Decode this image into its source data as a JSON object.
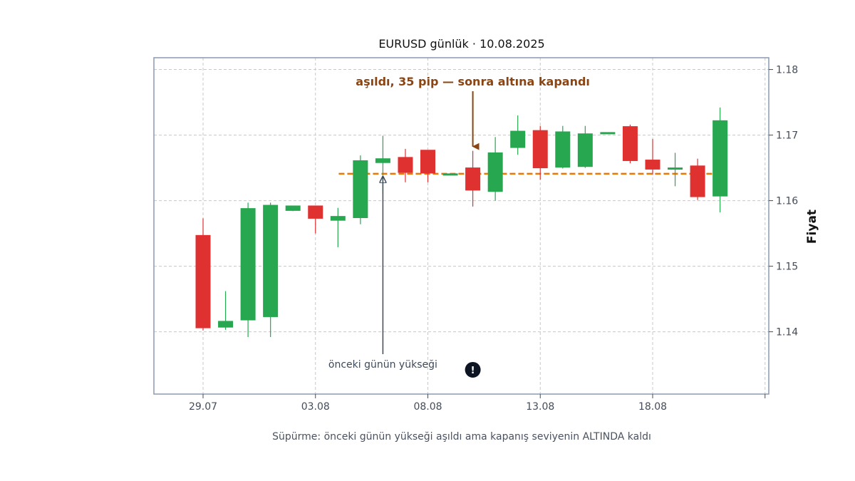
{
  "chart_data": {
    "type": "candlestick",
    "title": "EURUSD günlük · 10.08.2025",
    "ylabel": "Fiyat",
    "caption": "Süpürme: önceki günün yükseği aşıldı ama kapanış seviyenin ALTINDA kaldı",
    "ylim": [
      1.1305,
      1.1818
    ],
    "yticks": [
      "1.14",
      "1.15",
      "1.16",
      "1.17",
      "1.18"
    ],
    "ytick_values": [
      1.14,
      1.15,
      1.16,
      1.17,
      1.18
    ],
    "xticks": [
      "29.07",
      "03.08",
      "08.08",
      "13.08",
      "18.08"
    ],
    "grid": true,
    "colors": {
      "up": "#27a74f",
      "down": "#e03131",
      "level": "#e8760a",
      "annotation_top": "#8b4513",
      "annotation_bottom": "#3d4a5c",
      "marker": "#0d1524"
    },
    "candles": [
      {
        "date": "29.07",
        "open": 1.1547,
        "high": 1.1573,
        "low": 1.1402,
        "close": 1.1406
      },
      {
        "date": "30.07",
        "open": 1.1407,
        "high": 1.1462,
        "low": 1.1403,
        "close": 1.1416
      },
      {
        "date": "31.07",
        "open": 1.1418,
        "high": 1.1597,
        "low": 1.1392,
        "close": 1.1588
      },
      {
        "date": "01.08",
        "open": 1.1423,
        "high": 1.1597,
        "low": 1.1392,
        "close": 1.1593
      },
      {
        "date": "02.08",
        "open": 1.1585,
        "high": 1.1592,
        "low": 1.1584,
        "close": 1.1592
      },
      {
        "date": "03.08",
        "open": 1.1592,
        "high": 1.1592,
        "low": 1.155,
        "close": 1.1573
      },
      {
        "date": "04.08",
        "open": 1.157,
        "high": 1.1589,
        "low": 1.1529,
        "close": 1.1576
      },
      {
        "date": "05.08",
        "open": 1.1574,
        "high": 1.1669,
        "low": 1.1564,
        "close": 1.1661
      },
      {
        "date": "06.08",
        "open": 1.1658,
        "high": 1.1699,
        "low": 1.161,
        "close": 1.1664
      },
      {
        "date": "07.08",
        "open": 1.1666,
        "high": 1.1679,
        "low": 1.1628,
        "close": 1.1643
      },
      {
        "date": "08.08",
        "open": 1.1677,
        "high": 1.1677,
        "low": 1.1628,
        "close": 1.1642
      },
      {
        "date": "09.08",
        "open": 1.164,
        "high": 1.1641,
        "low": 1.164,
        "close": 1.1641
      },
      {
        "date": "10.08",
        "open": 1.165,
        "high": 1.1676,
        "low": 1.1591,
        "close": 1.1616
      },
      {
        "date": "11.08",
        "open": 1.1614,
        "high": 1.1697,
        "low": 1.16,
        "close": 1.1673
      },
      {
        "date": "12.08",
        "open": 1.1681,
        "high": 1.173,
        "low": 1.167,
        "close": 1.1706
      },
      {
        "date": "13.08",
        "open": 1.1707,
        "high": 1.1714,
        "low": 1.1632,
        "close": 1.165
      },
      {
        "date": "14.08",
        "open": 1.1651,
        "high": 1.1714,
        "low": 1.1649,
        "close": 1.1705
      },
      {
        "date": "15.08",
        "open": 1.1652,
        "high": 1.1714,
        "low": 1.165,
        "close": 1.1702
      },
      {
        "date": "16.08",
        "open": 1.1702,
        "high": 1.1704,
        "low": 1.1702,
        "close": 1.1704
      },
      {
        "date": "17.08",
        "open": 1.1713,
        "high": 1.1716,
        "low": 1.1657,
        "close": 1.1661
      },
      {
        "date": "18.08",
        "open": 1.1662,
        "high": 1.1694,
        "low": 1.164,
        "close": 1.1648
      },
      {
        "date": "19.08",
        "open": 1.1648,
        "high": 1.1673,
        "low": 1.1622,
        "close": 1.165
      },
      {
        "date": "20.08",
        "open": 1.1653,
        "high": 1.1664,
        "low": 1.1601,
        "close": 1.1606
      },
      {
        "date": "21.08",
        "open": 1.1607,
        "high": 1.1742,
        "low": 1.1582,
        "close": 1.1722
      }
    ],
    "level": {
      "value": 1.1641,
      "from": "06.08",
      "to": "22.08"
    },
    "annotations": [
      {
        "text": "aşıldı, 35 pip — sonra altına kapandı",
        "target_date": "10.08",
        "target_value": 1.1676,
        "placement": "above"
      },
      {
        "text": "önceki günün yükseği",
        "target_date": "06.08",
        "target_value": 1.1641,
        "placement": "below"
      }
    ],
    "marker": {
      "symbol": "!",
      "date": "10.08",
      "value": 1.1342
    }
  }
}
